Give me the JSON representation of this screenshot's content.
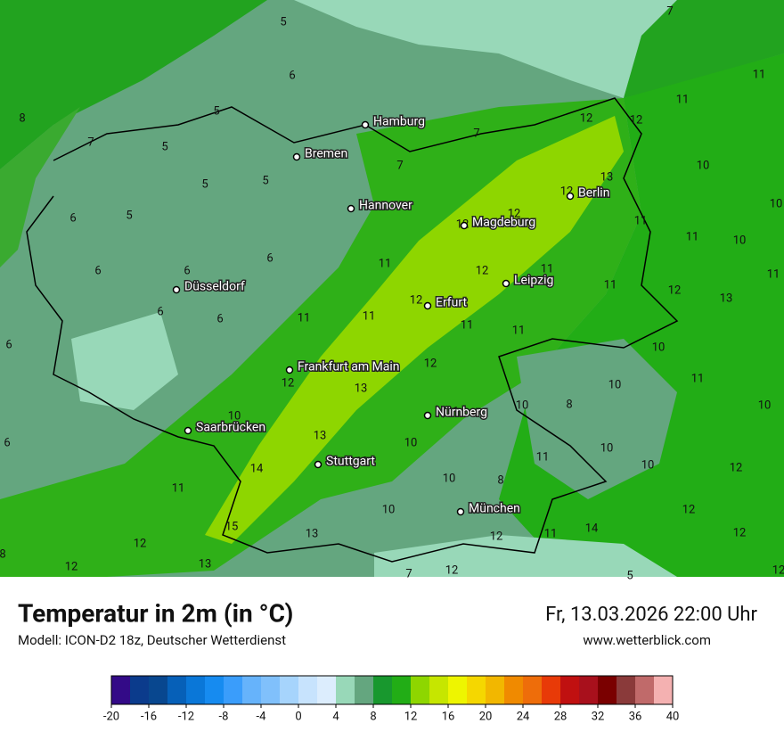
{
  "header": {
    "title": "Temperatur in 2m (in °C)",
    "model": "Modell: ICON-D2 18z, Deutscher Wetterdienst",
    "datetime": "Fr, 13.03.2026 22:00 Uhr",
    "website": "www.wetterblick.com"
  },
  "map": {
    "cities": [
      "Hamburg",
      "Bremen",
      "Hannover",
      "Berlin",
      "Magdeburg",
      "Düsseldorf",
      "Leipzig",
      "Erfurt",
      "Frankfurt am Main",
      "Nürnberg",
      "Saarbrücken",
      "Stuttgart",
      "München"
    ],
    "temperature_labels": [
      8,
      5,
      6,
      5,
      7,
      5,
      5,
      5,
      5,
      6,
      6,
      6,
      6,
      6,
      6,
      6,
      6,
      7,
      7,
      12,
      12,
      11,
      11,
      10,
      13,
      12,
      12,
      12,
      11,
      11,
      10,
      10,
      11,
      12,
      11,
      11,
      12,
      13,
      11,
      11,
      11,
      12,
      11,
      11,
      10,
      12,
      12,
      13,
      10,
      11,
      8,
      10,
      10,
      10,
      11,
      13,
      10,
      10,
      14,
      12,
      11,
      10,
      12,
      10,
      8,
      11,
      10,
      12,
      15,
      13,
      12,
      11,
      14,
      12,
      12,
      8,
      12,
      13,
      7,
      12,
      5,
      12,
      7
    ]
  },
  "colorbar": {
    "colors": [
      "#330a87",
      "#0b3b8c",
      "#08478f",
      "#0660b8",
      "#0a77d8",
      "#168bf0",
      "#3a9dfb",
      "#66b3fb",
      "#80c0fb",
      "#a6d4fc",
      "#c7e3fd",
      "#dcedfd",
      "#98d8b8",
      "#64a67f",
      "#18982e",
      "#22ad16",
      "#8ed600",
      "#c6e600",
      "#eef500",
      "#f5d700",
      "#f2b700",
      "#f08a00",
      "#ee6d0a",
      "#e83a08",
      "#c01010",
      "#a8101c",
      "#7a0000",
      "#8a3a3a",
      "#c06a6a",
      "#f4b1b1"
    ],
    "ticks": [
      -20,
      -16,
      -12,
      -8,
      -4,
      0,
      4,
      8,
      12,
      16,
      20,
      24,
      28,
      32,
      36,
      40
    ]
  }
}
